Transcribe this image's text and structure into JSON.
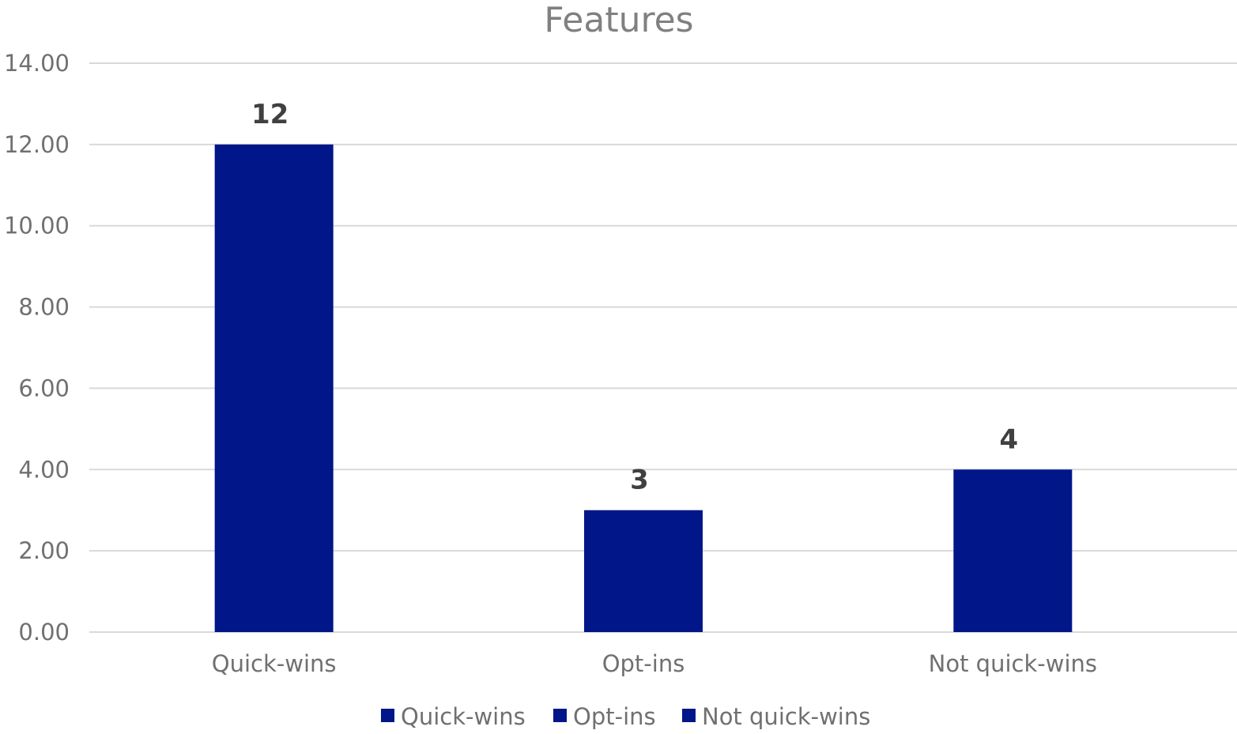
{
  "chart_data": {
    "type": "bar",
    "title": "Features",
    "categories": [
      "Quick-wins",
      "Opt-ins",
      "Not quick-wins"
    ],
    "values": [
      12,
      3,
      4
    ],
    "data_labels": [
      "12",
      "3",
      "4"
    ],
    "ylim": [
      0,
      14
    ],
    "yticks": [
      0,
      2,
      4,
      6,
      8,
      10,
      12,
      14
    ],
    "ytick_labels": [
      "0.00",
      "2.00",
      "4.00",
      "6.00",
      "8.00",
      "10.00",
      "12.00",
      "14.00"
    ],
    "xlabel": "",
    "ylabel": "",
    "grid": true,
    "legend": {
      "placement": "bottom",
      "entries": [
        "Quick-wins",
        "Opt-ins",
        "Not quick-wins"
      ]
    },
    "colors": {
      "bar": "#001689",
      "grid": "#d9d9d9",
      "title": "#808080",
      "tick": "#707070",
      "data_label": "#404040"
    }
  }
}
